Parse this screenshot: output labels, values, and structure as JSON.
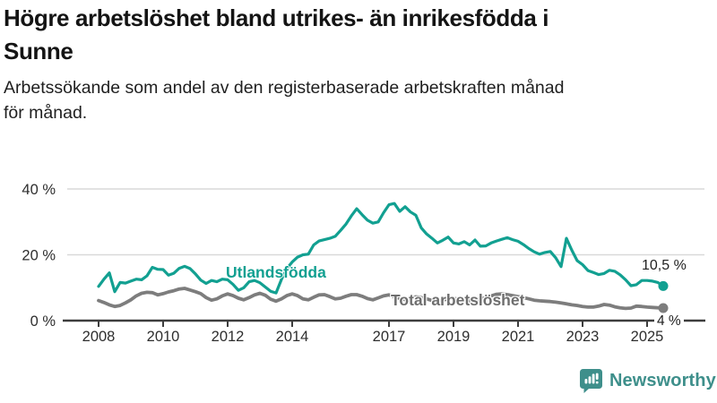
{
  "header": {
    "title": "Högre arbetslöshet bland utrikes- än inrikesfödda i Sunne",
    "title_lines": [
      "Högre arbetslöshet bland utrikes- än inrikesfödda i",
      "Sunne"
    ],
    "subtitle": "Arbetssökande som andel av den registerbaserade arbetskraften månad för månad.",
    "subtitle_lines": [
      "Arbetssökande som andel av den registerbaserade arbetskraften månad",
      "för månad."
    ]
  },
  "chart_data": {
    "type": "line",
    "title": "Högre arbetslöshet bland utrikes- än inrikesfödda i Sunne",
    "subtitle": "Arbetssökande som andel av den registerbaserade arbetskraften månad för månad.",
    "x_unit": "year, monthly series sampled every second month",
    "x_start": 2008,
    "x_step_years": 0.1666667,
    "ylim": [
      0,
      42
    ],
    "grid": "horizontal",
    "legend": "inline-labels",
    "y_ticks": [
      {
        "value": 0,
        "label": "0 %"
      },
      {
        "value": 20,
        "label": "20 %"
      },
      {
        "value": 40,
        "label": "40 %"
      }
    ],
    "x_ticks": [
      {
        "value": 2008,
        "label": "2008"
      },
      {
        "value": 2010,
        "label": "2010"
      },
      {
        "value": 2012,
        "label": "2012"
      },
      {
        "value": 2014,
        "label": "2014"
      },
      {
        "value": 2017,
        "label": "2017"
      },
      {
        "value": 2019,
        "label": "2019"
      },
      {
        "value": 2021,
        "label": "2021"
      },
      {
        "value": 2023,
        "label": "2023"
      },
      {
        "value": 2025,
        "label": "2025"
      }
    ],
    "series": [
      {
        "name": "Utlandsfödda",
        "color": "#12A091",
        "end_label": "10,5 %",
        "end_value": 10.5,
        "values": [
          10.4,
          12.6,
          14.5,
          8.8,
          11.6,
          11.4,
          12.0,
          12.6,
          12.4,
          13.6,
          16.2,
          15.6,
          15.5,
          13.8,
          14.4,
          15.9,
          16.5,
          15.8,
          14.2,
          12.3,
          11.3,
          12.2,
          11.8,
          12.6,
          12.4,
          11.0,
          9.2,
          10.0,
          11.8,
          12.2,
          11.5,
          10.2,
          8.9,
          8.4,
          12.5,
          15.8,
          17.8,
          19.3,
          20.0,
          20.2,
          23.0,
          24.2,
          24.6,
          25.0,
          25.6,
          27.4,
          29.3,
          31.8,
          34.0,
          32.2,
          30.5,
          29.6,
          30.0,
          32.8,
          35.2,
          35.6,
          33.2,
          34.6,
          33.0,
          32.0,
          28.2,
          26.3,
          25.0,
          23.6,
          24.4,
          25.4,
          23.6,
          23.3,
          24.0,
          23.0,
          24.5,
          22.6,
          22.7,
          23.6,
          24.2,
          24.7,
          25.2,
          24.6,
          24.1,
          23.1,
          21.9,
          20.9,
          20.2,
          20.7,
          21.0,
          19.1,
          16.4,
          25.0,
          21.4,
          18.2,
          17.0,
          15.2,
          14.6,
          14.0,
          14.3,
          15.3,
          15.0,
          13.9,
          12.4,
          10.6,
          10.9,
          12.2,
          12.2,
          12.0,
          11.6,
          10.5
        ]
      },
      {
        "name": "Total arbetslöshet",
        "color": "#7D7D7D",
        "end_label": "4 %",
        "end_value": 4,
        "values": [
          6.1,
          5.5,
          4.8,
          4.3,
          4.6,
          5.4,
          6.3,
          7.5,
          8.3,
          8.6,
          8.5,
          7.8,
          8.2,
          8.7,
          9.1,
          9.6,
          9.8,
          9.3,
          8.8,
          8.2,
          7.0,
          6.2,
          6.6,
          7.5,
          8.1,
          7.6,
          6.8,
          6.3,
          7.0,
          7.8,
          8.3,
          7.7,
          6.5,
          5.9,
          6.6,
          7.6,
          8.1,
          7.6,
          6.6,
          6.3,
          7.1,
          7.8,
          7.9,
          7.3,
          6.6,
          6.8,
          7.4,
          7.9,
          7.9,
          7.4,
          6.7,
          6.3,
          6.9,
          7.5,
          7.8,
          7.3,
          6.7,
          6.4,
          6.8,
          7.2,
          7.0,
          6.6,
          6.1,
          5.8,
          6.2,
          6.7,
          6.8,
          6.4,
          6.0,
          6.0,
          6.3,
          6.7,
          6.9,
          7.5,
          8.0,
          8.1,
          7.9,
          7.6,
          7.3,
          7.0,
          6.6,
          6.2,
          6.0,
          5.9,
          5.8,
          5.6,
          5.4,
          5.1,
          4.8,
          4.6,
          4.3,
          4.1,
          4.1,
          4.4,
          4.9,
          4.7,
          4.2,
          3.9,
          3.7,
          3.8,
          4.4,
          4.3,
          4.1,
          4.0,
          3.9,
          3.8
        ]
      }
    ]
  },
  "footer": {
    "brand": "Newsworthy"
  }
}
